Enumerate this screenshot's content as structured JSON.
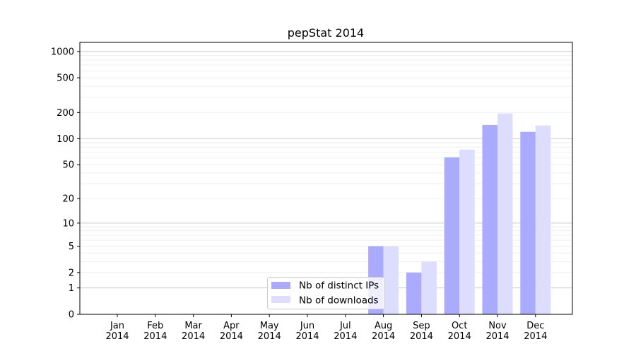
{
  "chart_data": {
    "type": "bar",
    "title": "pepStat 2014",
    "xlabel": "",
    "ylabel": "",
    "yscale": "log(1+y)",
    "ylim": [
      0,
      1270
    ],
    "grid": true,
    "legend_position": "bottom-center",
    "categories": [
      "Jan\n2014",
      "Feb\n2014",
      "Mar\n2014",
      "Apr\n2014",
      "May\n2014",
      "Jun\n2014",
      "Jul\n2014",
      "Aug\n2014",
      "Sep\n2014",
      "Oct\n2014",
      "Nov\n2014",
      "Dec\n2014"
    ],
    "yticks": [
      0,
      1,
      2,
      5,
      10,
      20,
      50,
      100,
      200,
      500,
      1000
    ],
    "series": [
      {
        "name": "Nb of distinct IPs",
        "color": "#aaaaff",
        "values": [
          0,
          0,
          0,
          0,
          0,
          0,
          0,
          5,
          2,
          61,
          144,
          120
        ]
      },
      {
        "name": "Nb of downloads",
        "color": "#ddddff",
        "values": [
          0,
          0,
          0,
          0,
          0,
          0,
          0,
          5,
          3,
          75,
          195,
          142
        ]
      }
    ]
  }
}
